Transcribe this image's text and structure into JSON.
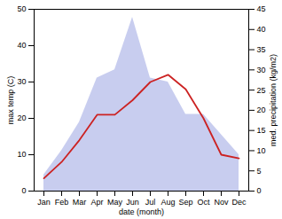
{
  "chart_data": {
    "type": "line",
    "categories": [
      "Jan",
      "Feb",
      "Mar",
      "Apr",
      "May",
      "Jun",
      "Jul",
      "Aug",
      "Sep",
      "Oct",
      "Nov",
      "Dec"
    ],
    "xlabel": "date (month)",
    "ylabel": "max temp (C)",
    "y2label": "med. precipitation (kg/m2)",
    "series": [
      {
        "type": "area",
        "axis": "y2",
        "color": "#b0b8e8",
        "values": [
          4,
          10,
          17,
          28,
          30,
          43,
          28,
          27,
          19,
          19,
          14,
          9
        ]
      },
      {
        "type": "line",
        "color": "#cc2222",
        "values": [
          3.5,
          8,
          14,
          21,
          21,
          25,
          30,
          32,
          28,
          20,
          10,
          9
        ]
      }
    ],
    "ylim": [
      0,
      50
    ],
    "yticks": [
      0,
      10,
      20,
      30,
      40,
      50
    ],
    "y2lim": [
      0,
      45
    ],
    "y2ticks": [
      0,
      5,
      10,
      15,
      20,
      25,
      30,
      35,
      40,
      45
    ],
    "grid": false
  }
}
